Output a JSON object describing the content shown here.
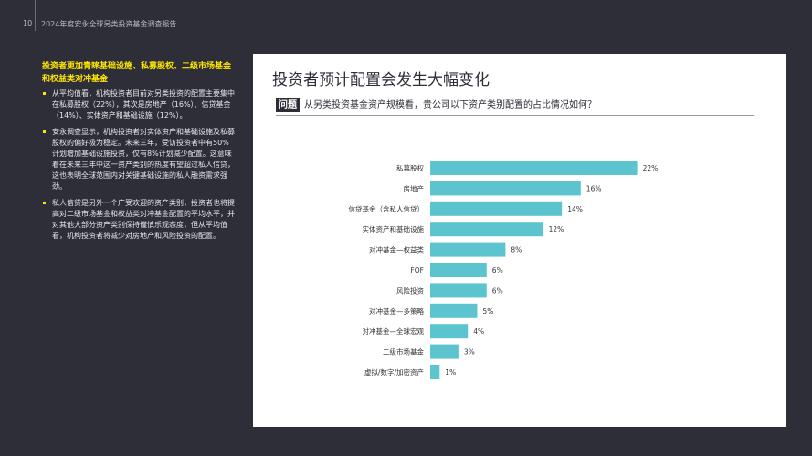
{
  "header": {
    "page_number": "10",
    "report_title": "2024年度安永全球另类投资基金调查报告"
  },
  "left": {
    "heading": "投资者更加青睐基础设施、私募股权、二级市场基金和权益类对冲基金",
    "bullets": [
      "从平均值看，机构投资者目前对另类投资的配置主要集中在私募股权（22%），其次是房地产（16%）、信贷基金（14%）、实体资产和基础设施（12%）。",
      "安永调查显示，机构投资者对实体资产和基础设施及私募股权的偏好极为稳定。未来三年，受访投资者中有50%计划增加基础设施投资，仅有8%计划减少配置。这意味着在未来三年中这一资产类别的热度有望超过私人信贷，这也表明全球范围内对关键基础设施的私人融资需求强劲。",
      "私人信贷是另外一个广受欢迎的资产类别，投资者也将提高对二级市场基金和权益类对冲基金配置的平均水平，并对其他大部分资产类别保持谨慎乐观态度，但从平均值看，机构投资者将减少对房地产和风险投资的配置。"
    ]
  },
  "panel": {
    "title": "投资者预计配置会发生大幅变化",
    "question_badge": "问题",
    "question": "从另类投资基金资产规模看，贵公司以下资产类别配置的占比情况如何？"
  },
  "chart_data": {
    "type": "bar",
    "orientation": "horizontal",
    "categories": [
      "私募股权",
      "房地产",
      "信贷基金（含私人信贷）",
      "实体资产和基础设施",
      "对冲基金—权益类",
      "FOF",
      "风险投资",
      "对冲基金—多策略",
      "对冲基金—全球宏观",
      "二级市场基金",
      "虚拟/数字/加密资产"
    ],
    "values": [
      22,
      16,
      14,
      12,
      8,
      6,
      6,
      5,
      4,
      3,
      1
    ],
    "value_labels": [
      "22%",
      "16%",
      "14%",
      "12%",
      "8%",
      "6%",
      "6%",
      "5%",
      "4%",
      "3%",
      "1%"
    ],
    "unit": "%",
    "bar_color": "#5bc4cf",
    "grid": false
  }
}
